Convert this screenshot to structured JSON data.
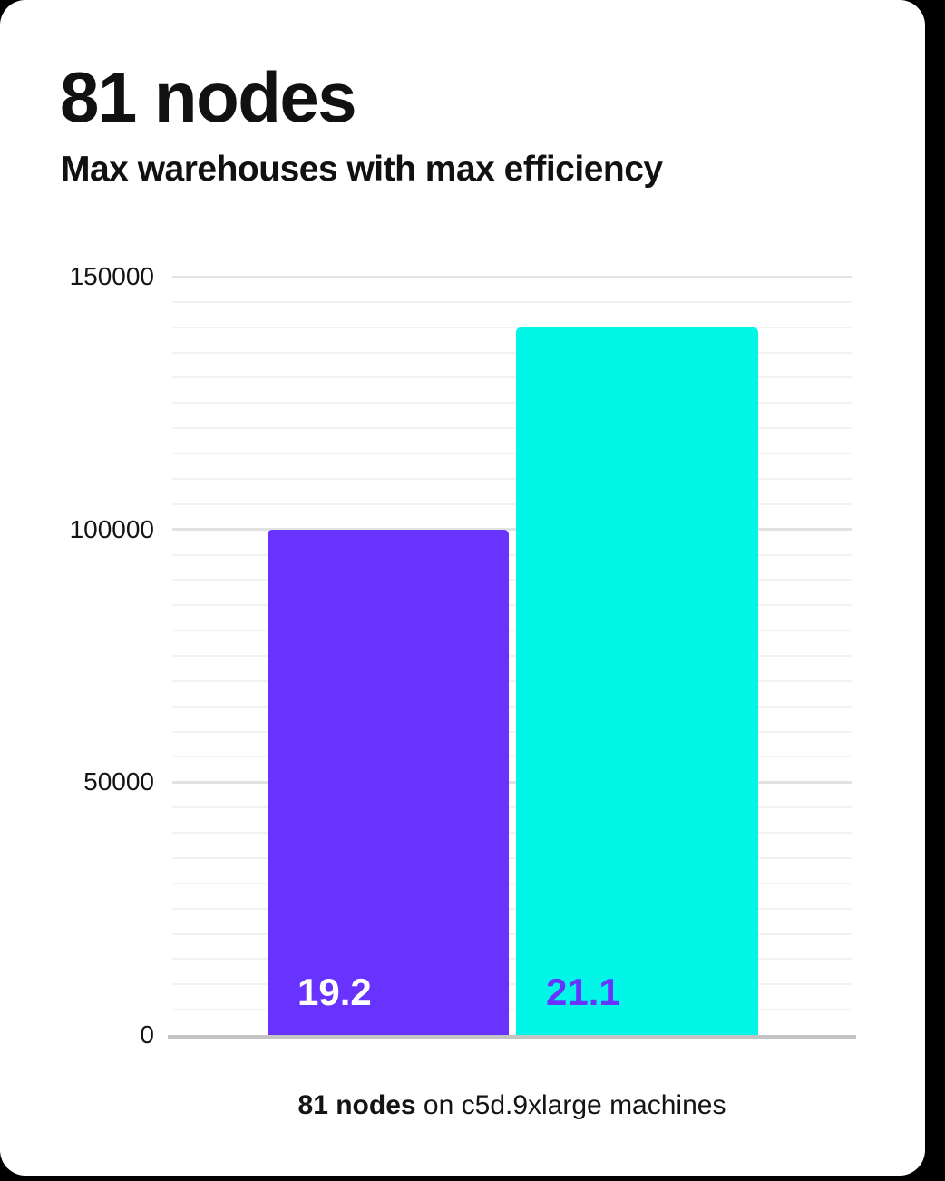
{
  "page": {
    "background_color": "#000000",
    "card_color": "#ffffff"
  },
  "header": {
    "title": "81 nodes",
    "subtitle": "Max warehouses with max efficiency"
  },
  "caption": {
    "bold": "81 nodes",
    "rest": " on c5d.9xlarge machines"
  },
  "chart_data": {
    "type": "bar",
    "title": "81 nodes",
    "subtitle": "Max warehouses with max efficiency",
    "categories": [
      "19.2",
      "21.1"
    ],
    "values": [
      100000,
      140000
    ],
    "bar_labels": [
      "19.2",
      "21.1"
    ],
    "bar_colors": [
      "#6933ff",
      "#00f7e8"
    ],
    "bar_label_colors": [
      "#ffffff",
      "#6933ff"
    ],
    "ylabel": "",
    "xlabel": "",
    "ylim": [
      0,
      150000
    ],
    "yticks": [
      0,
      50000,
      100000,
      150000
    ],
    "ytick_labels": [
      "0",
      "50000",
      "100000",
      "150000"
    ],
    "minor_grid_step": 5000,
    "grid": true,
    "legend": false,
    "annotation": "81 nodes on c5d.9xlarge machines",
    "colors": {
      "grid_minor": "#f2f2f2",
      "grid_major": "#e2e2e2",
      "axis_line": "#c4c4c4",
      "text": "#141414"
    }
  }
}
